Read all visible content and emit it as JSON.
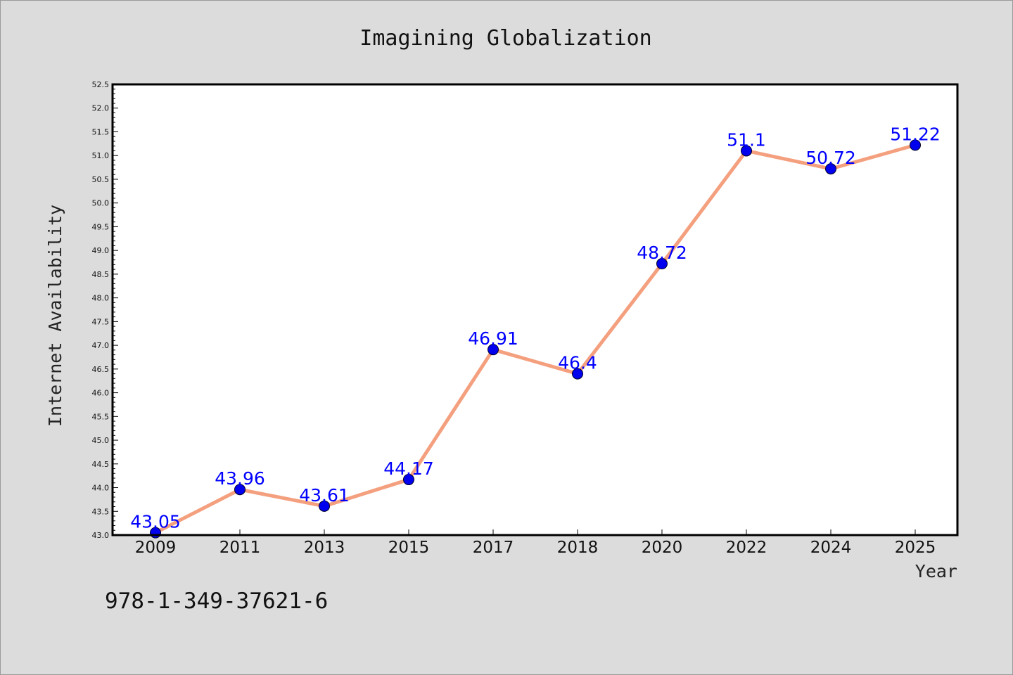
{
  "chart_data": {
    "type": "line",
    "title": "Imagining Globalization",
    "xlabel": "Year",
    "ylabel": "Internet Availability",
    "categories": [
      "2009",
      "2011",
      "2013",
      "2015",
      "2017",
      "2018",
      "2020",
      "2022",
      "2024",
      "2025"
    ],
    "values": [
      43.05,
      43.96,
      43.61,
      44.17,
      46.91,
      46.4,
      48.72,
      51.1,
      50.72,
      51.22
    ],
    "data_labels": [
      "43.05",
      "43.96",
      "43.61",
      "44.17",
      "46.91",
      "46.4",
      "48.72",
      "51.1",
      "50.72",
      "51.22"
    ],
    "ylim": [
      43.0,
      52.5
    ],
    "yticks": [
      "43.0",
      "43.5",
      "44.0",
      "44.5",
      "45.0",
      "45.5",
      "46.0",
      "46.5",
      "47.0",
      "47.5",
      "48.0",
      "48.5",
      "49.0",
      "49.5",
      "50.0",
      "50.5",
      "51.0",
      "51.5",
      "52.0",
      "52.5"
    ],
    "grid": false,
    "line_color": "#f4a07f",
    "marker_color": "#0000ee",
    "label_color": "#0000ff"
  },
  "footer": {
    "code": "978-1-349-37621-6"
  }
}
